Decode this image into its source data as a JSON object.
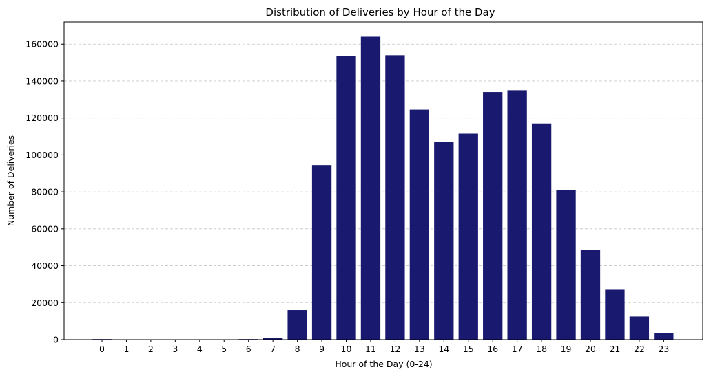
{
  "chart_data": {
    "type": "bar",
    "title": "Distribution of Deliveries by Hour of the Day",
    "xlabel": "Hour of the Day (0-24)",
    "ylabel": "Number of Deliveries",
    "categories": [
      "0",
      "1",
      "2",
      "3",
      "4",
      "5",
      "6",
      "7",
      "8",
      "9",
      "10",
      "11",
      "12",
      "13",
      "14",
      "15",
      "16",
      "17",
      "18",
      "19",
      "20",
      "21",
      "22",
      "23"
    ],
    "values": [
      300,
      50,
      30,
      20,
      20,
      30,
      300,
      800,
      16000,
      94500,
      153500,
      164000,
      154000,
      124500,
      107000,
      111500,
      134000,
      135000,
      117000,
      81000,
      48500,
      27000,
      12500,
      3500
    ],
    "ylim": [
      0,
      172000
    ],
    "yticks": [
      0,
      20000,
      40000,
      60000,
      80000,
      100000,
      120000,
      140000,
      160000
    ],
    "grid": "y-dashed",
    "bar_color": "#191970",
    "grid_color": "#c8c8c8"
  }
}
